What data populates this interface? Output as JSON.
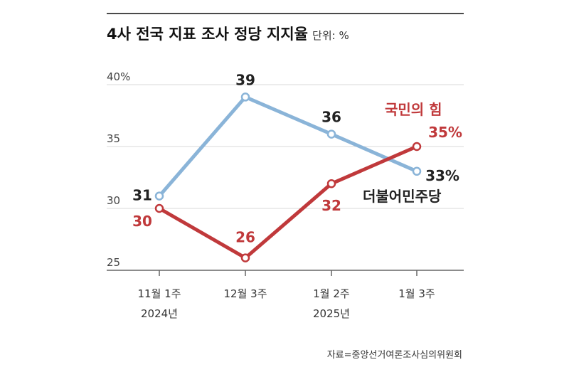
{
  "title": "4사 전국 지표 조사 정당 지지율",
  "unit": "단위: %",
  "source": "자료=중앙선거여론조사심의위원회",
  "colors": {
    "blue": "#8ab4d8",
    "red": "#c0393b",
    "grid": "#d9d9d9",
    "axis": "#666666"
  },
  "chart_data": {
    "type": "line",
    "categories": [
      "11월 1주",
      "12월 3주",
      "1월 2주",
      "1월 3주"
    ],
    "category_sublabels": [
      "2024년",
      "",
      "2025년",
      ""
    ],
    "ylim": [
      25,
      40
    ],
    "y_ticks": [
      "40%",
      "35",
      "30",
      "25"
    ],
    "y_tick_values": [
      40,
      35,
      30,
      25
    ],
    "grid": true,
    "series": [
      {
        "name": "더불어민주당",
        "color": "#8ab4d8",
        "values": [
          31,
          39,
          36,
          33
        ],
        "labels": [
          "31",
          "39",
          "36",
          "33%"
        ]
      },
      {
        "name": "국민의 힘",
        "color": "#c0393b",
        "values": [
          30,
          26,
          32,
          35
        ],
        "labels": [
          "30",
          "26",
          "32",
          "35%"
        ]
      }
    ]
  }
}
